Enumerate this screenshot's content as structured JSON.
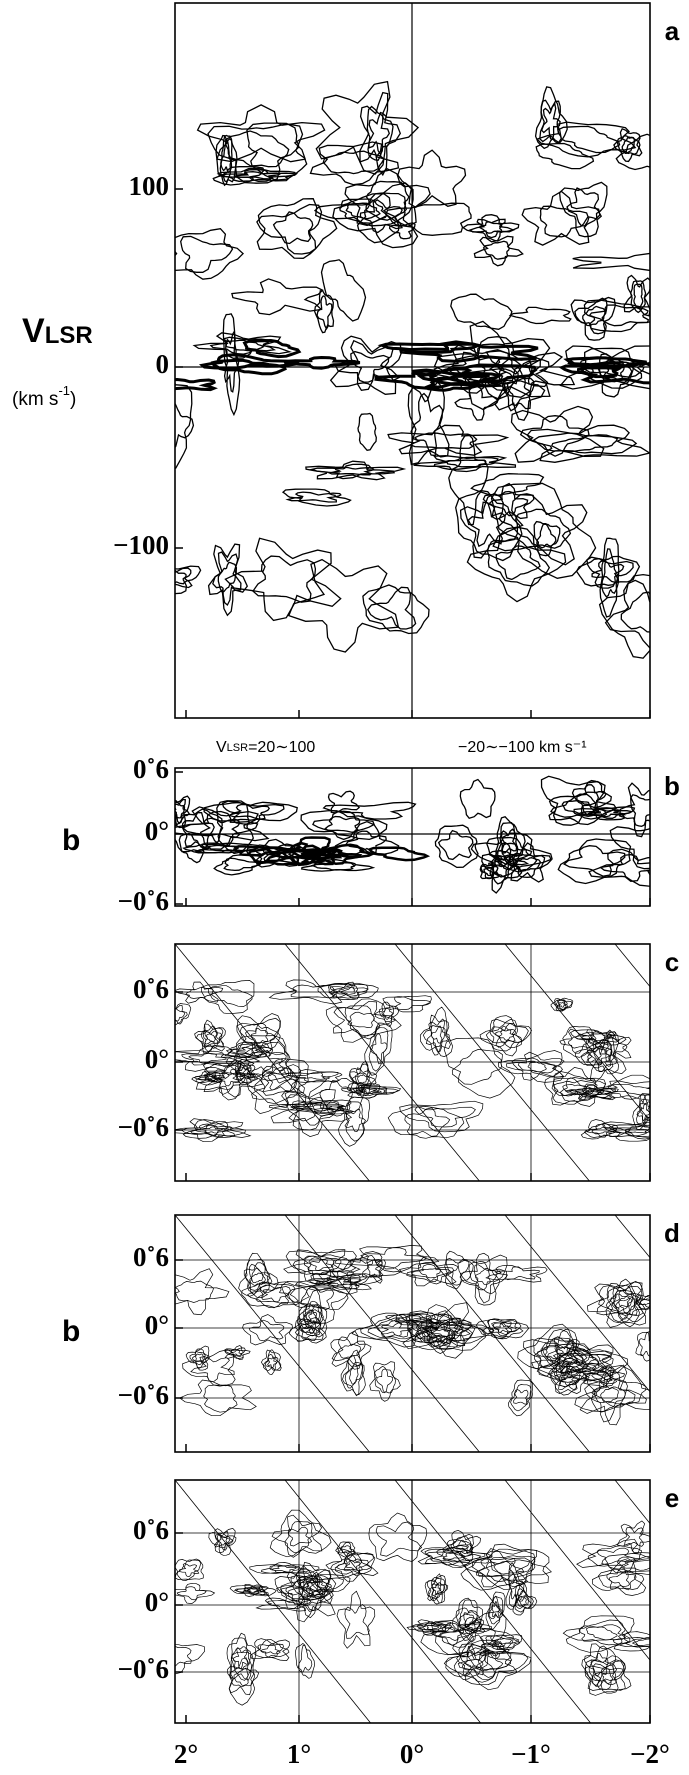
{
  "panels": [
    {
      "letter": "a",
      "y_ticks": [
        "100",
        "0",
        "−100"
      ]
    },
    {
      "letter": "b",
      "y_ticks": [
        "0˚6",
        "0°",
        "−0˚6"
      ]
    },
    {
      "letter": "c",
      "y_ticks": [
        "0˚6",
        "0°",
        "−0˚6"
      ]
    },
    {
      "letter": "d",
      "y_ticks": [
        "0˚6",
        "0°",
        "−0˚6"
      ]
    },
    {
      "letter": "e",
      "y_ticks": [
        "0˚6",
        "0°",
        "−0˚6"
      ]
    }
  ],
  "velocity_label": {
    "symbol": "V",
    "subscript": "LSR"
  },
  "velocity_unit": {
    "base": "(km s",
    "exponent": "-1",
    "close": ")"
  },
  "side_labels": [
    "b",
    "b"
  ],
  "panel_b_header": {
    "left_symbol": "V",
    "left_subscript": "LSR",
    "left_range": "=20∼100",
    "right": "−20∼−100 km s⁻¹"
  },
  "x_ticks": [
    "2°",
    "1°",
    "0°",
    "−1°",
    "−2°"
  ]
}
